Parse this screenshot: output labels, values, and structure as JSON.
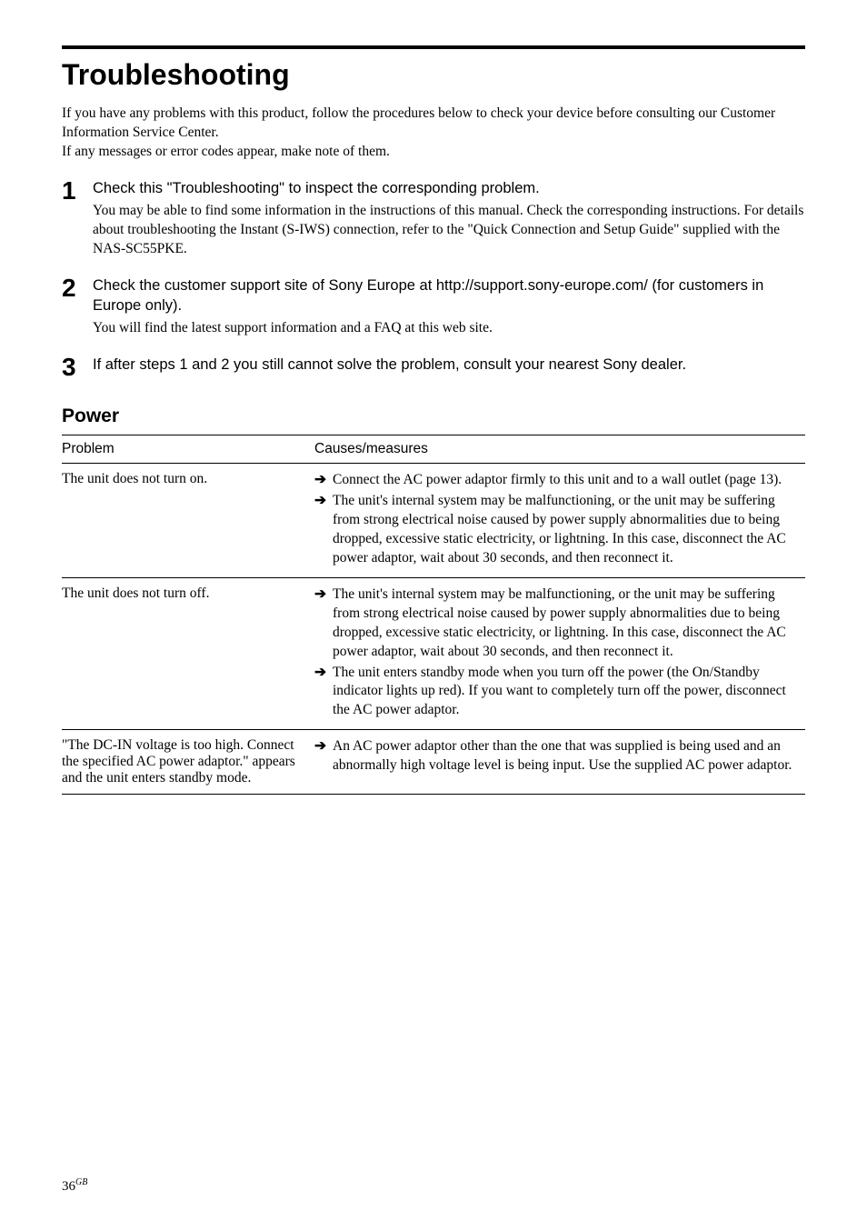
{
  "title": "Troubleshooting",
  "intro_lines": [
    "If you have any problems with this product, follow the procedures below to check your device before consulting our Customer Information Service Center.",
    "If any messages or error codes appear, make note of them."
  ],
  "steps": [
    {
      "num": "1",
      "head": "Check this \"Troubleshooting\" to inspect the corresponding problem.",
      "desc": "You may be able to find some information in the instructions of this manual. Check the corresponding instructions. For details about troubleshooting the Instant (S-IWS) connection, refer to the \"Quick Connection and Setup Guide\" supplied with the NAS-SC55PKE."
    },
    {
      "num": "2",
      "head": "Check the customer support site of Sony Europe at http://support.sony-europe.com/ (for customers in Europe only).",
      "desc": "You will find the latest support information and a FAQ at this web site."
    },
    {
      "num": "3",
      "head": "If after steps 1 and 2 you still cannot solve the problem, consult your nearest Sony dealer.",
      "desc": ""
    }
  ],
  "section_heading": "Power",
  "table": {
    "col_problem": "Problem",
    "col_causes": "Causes/measures",
    "rows": [
      {
        "problem": "The unit does not turn on.",
        "measures": [
          "Connect the AC power adaptor firmly to this unit and to a wall outlet (page 13).",
          "The unit's internal system may be malfunctioning, or the unit may be suffering from strong electrical noise caused by power supply abnormalities due to being dropped, excessive static electricity, or lightning. In this case, disconnect the AC power adaptor, wait about 30 seconds, and then reconnect it."
        ]
      },
      {
        "problem": "The unit does not turn off.",
        "measures": [
          "The unit's internal system may be malfunctioning, or the unit may be suffering from strong electrical noise caused by power supply abnormalities due to being dropped, excessive static electricity, or lightning. In this case, disconnect the AC power adaptor, wait about 30 seconds, and then reconnect it.",
          "The unit enters standby mode when you turn off the power (the On/Standby indicator lights up red). If you want to completely turn off the power, disconnect the AC power adaptor."
        ]
      },
      {
        "problem": "\"The DC-IN voltage is too high. Connect the specified AC power adaptor.\" appears and the unit enters standby mode.",
        "measures": [
          "An AC power adaptor other than the one that was supplied is being used and an abnormally high voltage level is being input. Use the supplied AC power adaptor."
        ]
      }
    ]
  },
  "page_number": "36",
  "page_suffix": "GB",
  "arrow_glyph": "➔"
}
